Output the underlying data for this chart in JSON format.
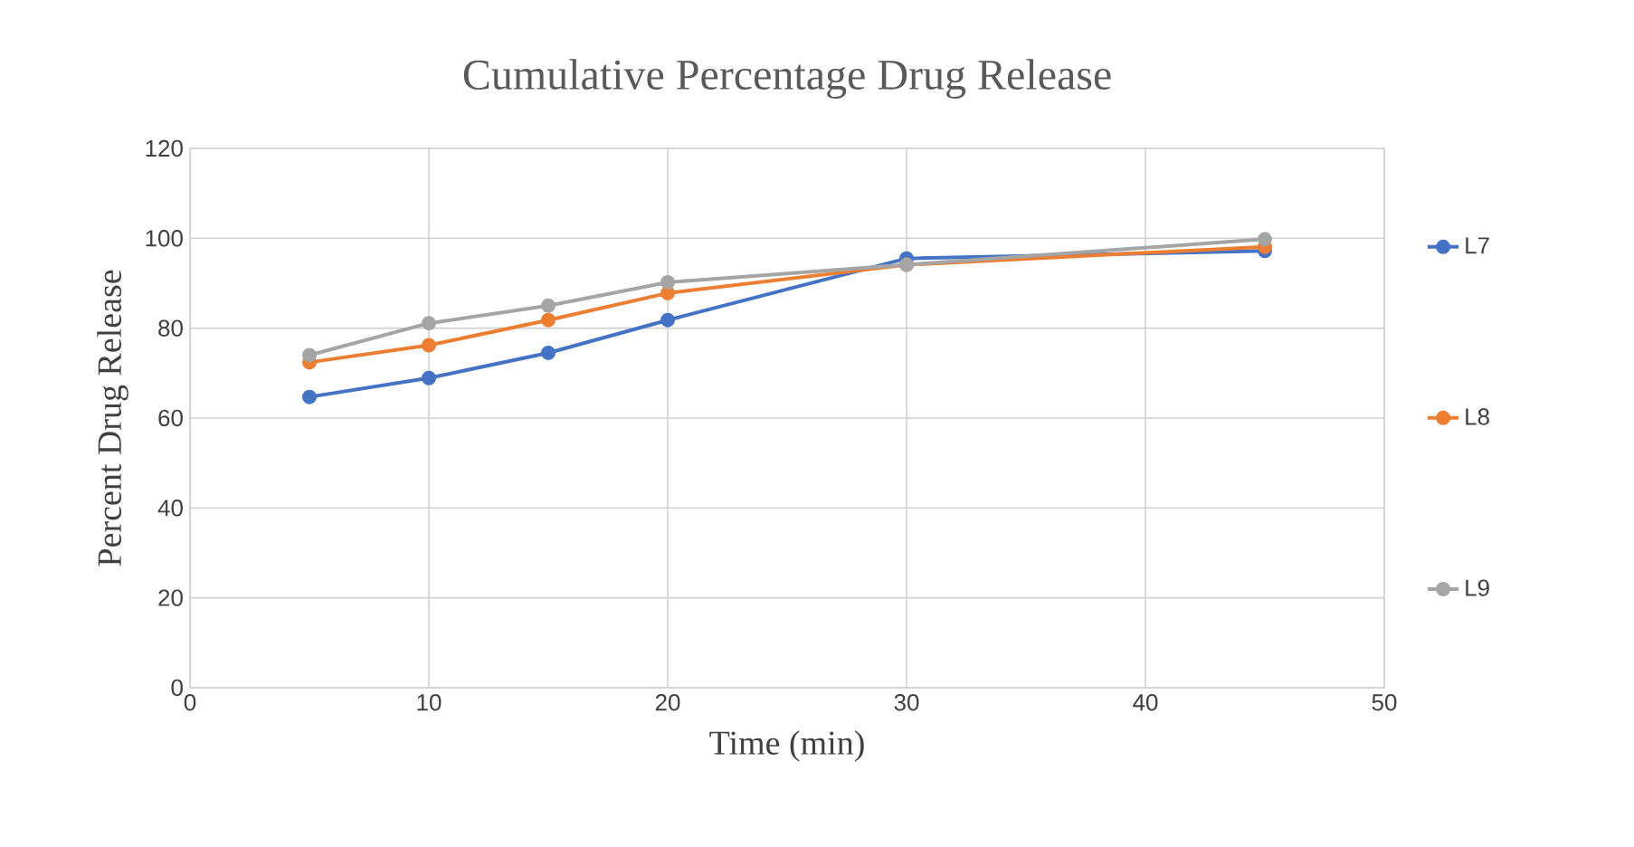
{
  "chart_data": {
    "type": "line",
    "title": "Cumulative Percentage Drug Release",
    "xlabel": "Time (min)",
    "ylabel": "Percent Drug Release",
    "xlim": [
      0,
      50
    ],
    "xticks": [
      0,
      10,
      20,
      30,
      40,
      50
    ],
    "ylim": [
      0,
      120
    ],
    "yticks": [
      0,
      20,
      40,
      60,
      80,
      100,
      120
    ],
    "grid": true,
    "legend": "right",
    "marker": "circle",
    "line_style": "solid",
    "x": [
      5,
      10,
      15,
      20,
      30,
      45
    ],
    "series": [
      {
        "name": "L7",
        "color": "#4472c4",
        "values": [
          64.7,
          68.9,
          74.5,
          81.8,
          95.5,
          97.2
        ]
      },
      {
        "name": "L8",
        "color": "#ed7d31",
        "values": [
          72.4,
          76.2,
          81.8,
          87.8,
          94.1,
          98.1
        ]
      },
      {
        "name": "L9",
        "color": "#a5a5a5",
        "values": [
          74,
          81.1,
          85,
          90.2,
          94.1,
          99.8
        ]
      }
    ]
  }
}
